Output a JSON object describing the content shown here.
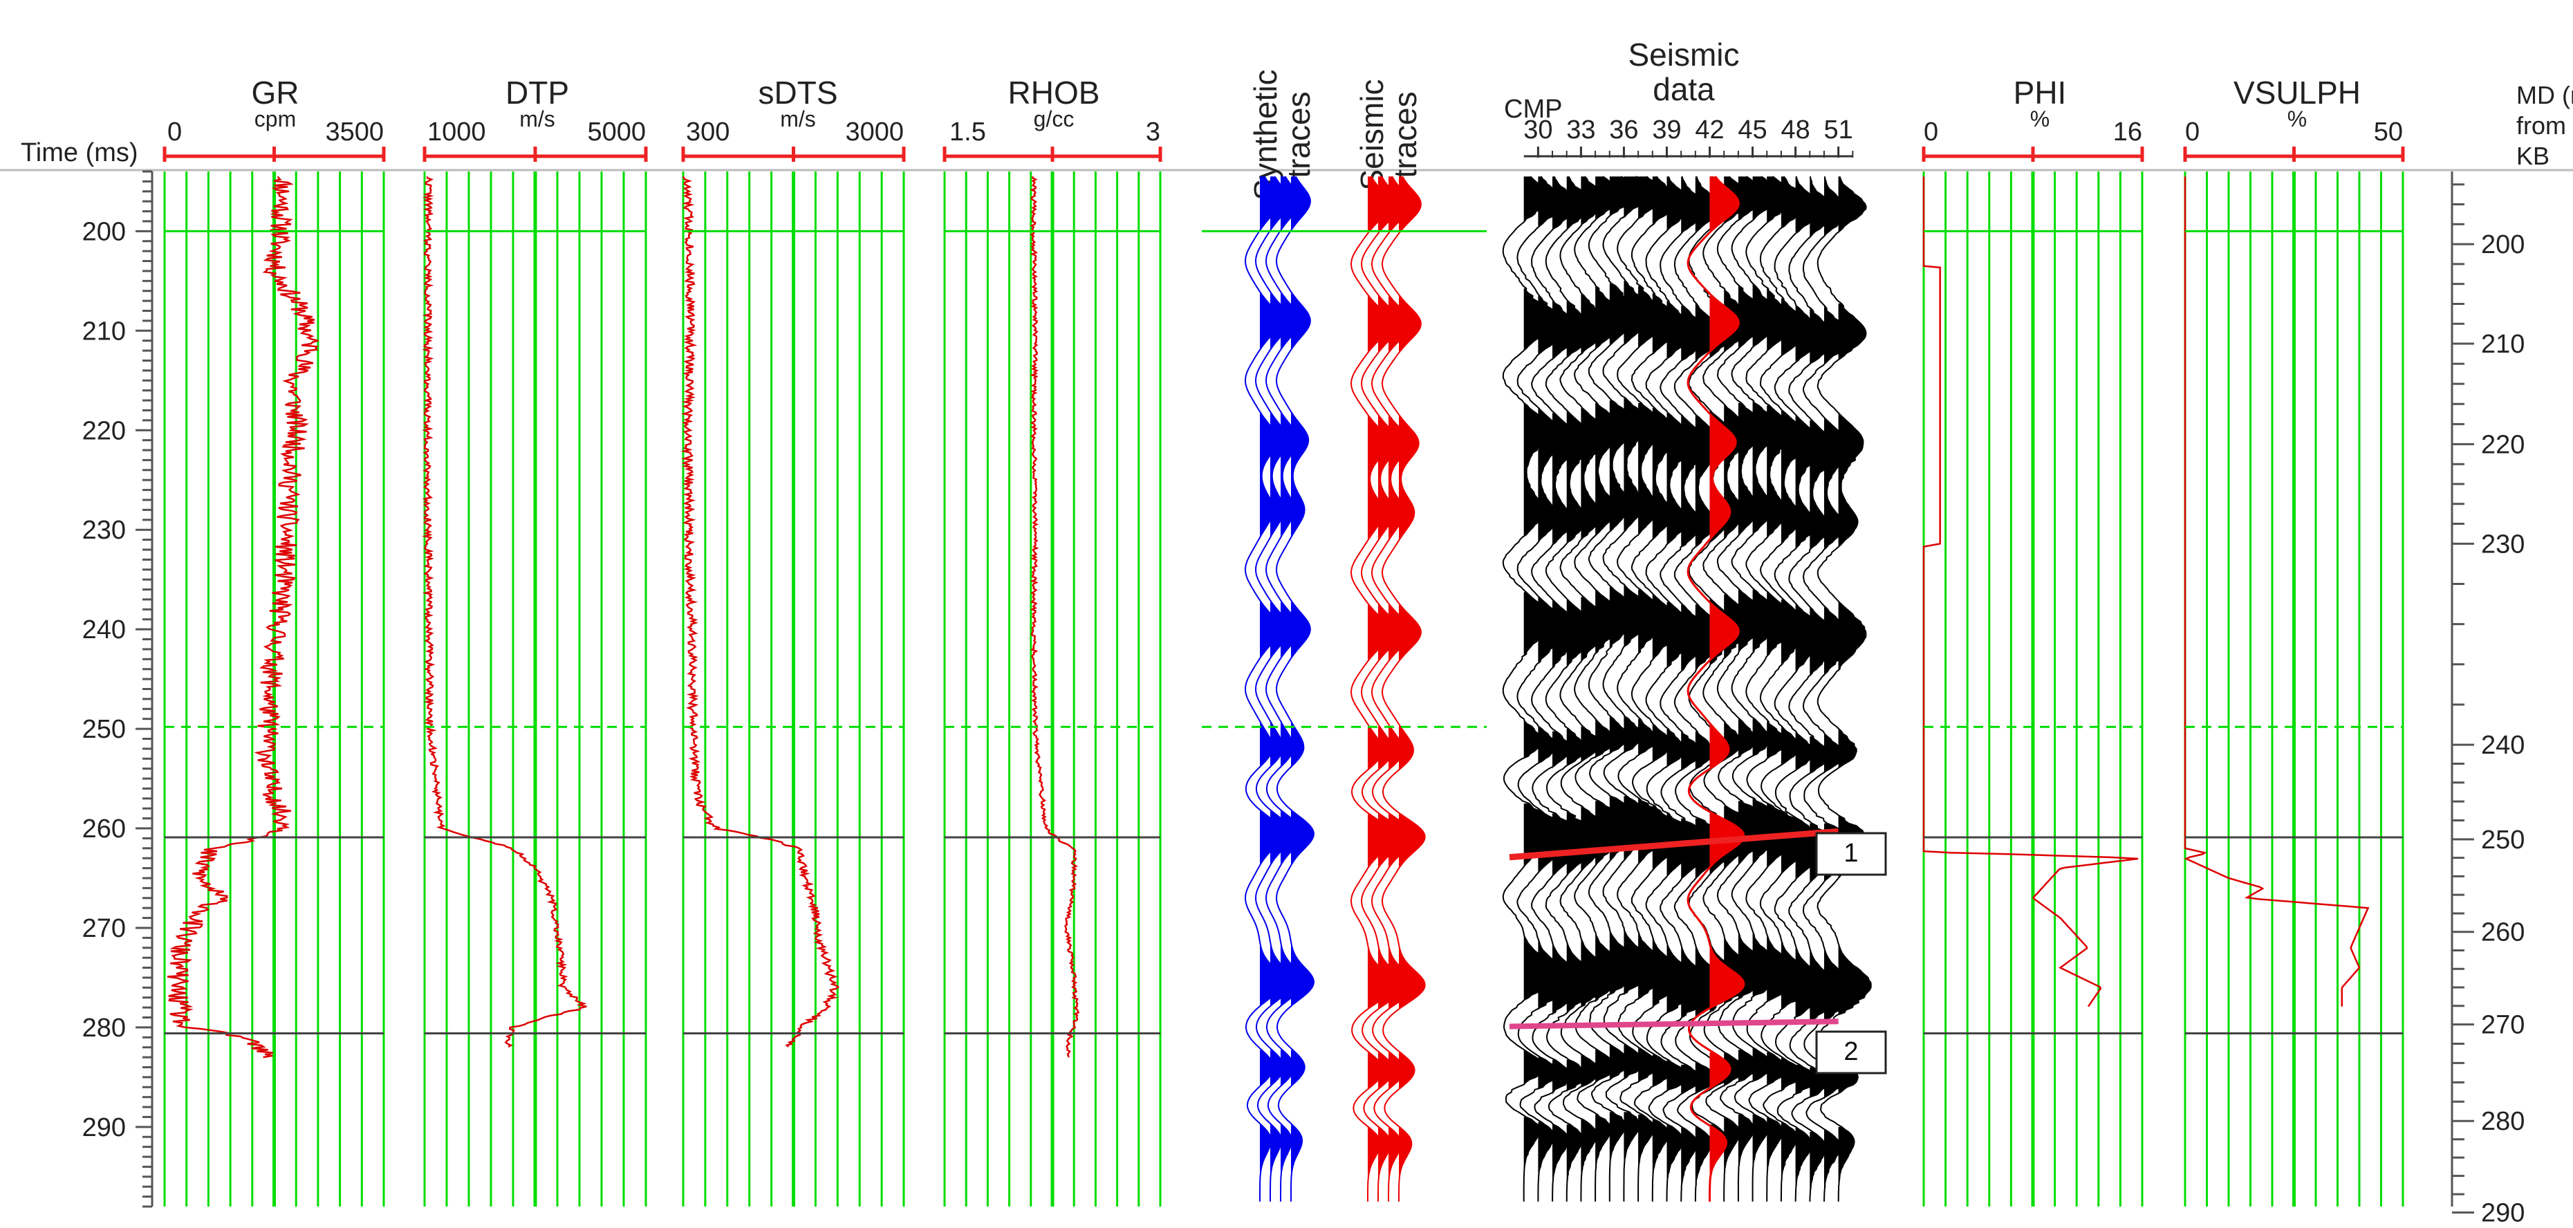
{
  "chart_data": {
    "type": "well-log-seismic-tie",
    "time_axis": {
      "label": "Time (ms)",
      "range": [
        194,
        298
      ],
      "ticks": [
        200,
        210,
        220,
        230,
        240,
        250,
        260,
        270,
        280,
        290
      ]
    },
    "depth_axis": {
      "label_lines": [
        "MD (m)",
        "from",
        "KB"
      ],
      "ticks": [
        200,
        210,
        220,
        230,
        240,
        250,
        260,
        270,
        280,
        290
      ],
      "time_at_md": [
        {
          "md": 200,
          "t": 201.3
        },
        {
          "md": 210,
          "t": 211.3
        },
        {
          "md": 220,
          "t": 221.4
        },
        {
          "md": 230,
          "t": 231.4
        },
        {
          "md": 240,
          "t": 251.6
        },
        {
          "md": 250,
          "t": 261.1
        },
        {
          "md": 260,
          "t": 270.4
        },
        {
          "md": 270,
          "t": 279.7
        },
        {
          "md": 280,
          "t": 289.4
        },
        {
          "md": 290,
          "t": 298.6
        }
      ]
    },
    "horizons": [
      {
        "t": 200,
        "style": "solid",
        "color": "#00dd00"
      },
      {
        "t": 249.8,
        "style": "dashed",
        "color": "#00dd00"
      },
      {
        "t": 260.9,
        "style": "solid",
        "color": "#444444"
      },
      {
        "t": 280.6,
        "style": "solid",
        "color": "#444444"
      }
    ],
    "logs": [
      {
        "name": "GR",
        "unit": "cpm",
        "min": 0,
        "max": 3500,
        "min_label": "0",
        "max_label": "3500",
        "profile": [
          [
            194.5,
            1900
          ],
          [
            200,
            1850
          ],
          [
            204,
            1750
          ],
          [
            208,
            2200
          ],
          [
            212,
            2350
          ],
          [
            215,
            2050
          ],
          [
            220,
            2100
          ],
          [
            225,
            2000
          ],
          [
            230,
            1950
          ],
          [
            235,
            1900
          ],
          [
            240,
            1800
          ],
          [
            245,
            1700
          ],
          [
            250,
            1650
          ],
          [
            255,
            1650
          ],
          [
            260,
            1950
          ],
          [
            261,
            1600
          ],
          [
            262,
            700
          ],
          [
            265,
            550
          ],
          [
            267,
            900
          ],
          [
            269,
            480
          ],
          [
            272,
            250
          ],
          [
            276,
            200
          ],
          [
            279,
            250
          ],
          [
            280,
            300
          ],
          [
            281,
            1300
          ],
          [
            283,
            1650
          ]
        ]
      },
      {
        "name": "DTP",
        "unit": "m/s",
        "min": 1000,
        "max": 5000,
        "min_label": "1000",
        "max_label": "5000",
        "profile": [
          [
            194.5,
            1080
          ],
          [
            200,
            1060
          ],
          [
            210,
            1060
          ],
          [
            220,
            1050
          ],
          [
            230,
            1060
          ],
          [
            240,
            1080
          ],
          [
            250,
            1100
          ],
          [
            255,
            1200
          ],
          [
            258,
            1250
          ],
          [
            260,
            1300
          ],
          [
            261,
            1900
          ],
          [
            262,
            2600
          ],
          [
            264,
            3000
          ],
          [
            267,
            3300
          ],
          [
            272,
            3450
          ],
          [
            276,
            3500
          ],
          [
            278,
            3900
          ],
          [
            279,
            3200
          ],
          [
            280,
            2600
          ],
          [
            282,
            2500
          ]
        ]
      },
      {
        "name": "sDTS",
        "unit": "m/s",
        "min": 300,
        "max": 3000,
        "min_label": "300",
        "max_label": "3000",
        "profile": [
          [
            194.5,
            330
          ],
          [
            200,
            380
          ],
          [
            210,
            390
          ],
          [
            220,
            360
          ],
          [
            230,
            370
          ],
          [
            240,
            400
          ],
          [
            250,
            420
          ],
          [
            255,
            450
          ],
          [
            258,
            520
          ],
          [
            260,
            700
          ],
          [
            261,
            1300
          ],
          [
            262,
            1700
          ],
          [
            265,
            1800
          ],
          [
            268,
            1900
          ],
          [
            272,
            2000
          ],
          [
            276,
            2150
          ],
          [
            278,
            2050
          ],
          [
            280,
            1750
          ],
          [
            282,
            1600
          ]
        ]
      },
      {
        "name": "RHOB",
        "unit": "g/cc",
        "min": 1.5,
        "max": 3,
        "min_label": "1.5",
        "max_label": "3",
        "profile": [
          [
            194.5,
            2.12
          ],
          [
            200,
            2.12
          ],
          [
            210,
            2.13
          ],
          [
            220,
            2.12
          ],
          [
            230,
            2.13
          ],
          [
            240,
            2.12
          ],
          [
            250,
            2.13
          ],
          [
            255,
            2.16
          ],
          [
            258,
            2.19
          ],
          [
            260,
            2.2
          ],
          [
            261,
            2.28
          ],
          [
            262,
            2.4
          ],
          [
            265,
            2.4
          ],
          [
            270,
            2.35
          ],
          [
            275,
            2.4
          ],
          [
            279,
            2.42
          ],
          [
            281,
            2.37
          ],
          [
            283,
            2.35
          ]
        ]
      },
      {
        "name": "PHI",
        "unit": "%",
        "min": 0,
        "max": 16,
        "min_label": "0",
        "max_label": "16",
        "profile": [
          [
            194.5,
            0
          ],
          [
            203.5,
            0
          ],
          [
            203.6,
            1.2
          ],
          [
            231.5,
            1.2
          ],
          [
            231.6,
            0
          ],
          [
            262.4,
            0
          ],
          [
            262.5,
            4
          ],
          [
            263,
            16
          ],
          [
            264,
            10
          ],
          [
            267,
            8
          ],
          [
            269,
            10
          ],
          [
            272,
            12
          ],
          [
            274,
            10
          ],
          [
            276,
            13
          ],
          [
            278,
            12
          ]
        ]
      },
      {
        "name": "VSULPH",
        "unit": "%",
        "min": 0,
        "max": 50,
        "min_label": "0",
        "max_label": "50",
        "profile": [
          [
            194.5,
            0
          ],
          [
            262,
            0
          ],
          [
            262.5,
            5
          ],
          [
            263,
            0
          ],
          [
            264,
            5
          ],
          [
            265,
            10
          ],
          [
            266,
            18
          ],
          [
            267,
            14
          ],
          [
            268,
            42
          ],
          [
            270,
            40
          ],
          [
            272,
            38
          ],
          [
            274,
            40
          ],
          [
            276,
            36
          ],
          [
            278,
            36
          ]
        ]
      }
    ],
    "synthetic_traces": {
      "title_lines": [
        "Synthetic",
        "traces"
      ],
      "color": "#0000ee",
      "count": 4
    },
    "seismic_traces": {
      "title_lines": [
        "Seismic",
        "traces"
      ],
      "color": "#ee0000",
      "count": 4
    },
    "seismic_data": {
      "title_lines": [
        "Seismic",
        "data"
      ],
      "xlabel": "CMP",
      "cmp_range": [
        28,
        53
      ],
      "cmp_ticks": [
        30,
        33,
        36,
        39,
        42,
        45,
        48,
        51
      ],
      "minor_cmp_ticks": [
        31,
        32,
        34,
        35,
        37,
        38,
        40,
        41,
        43,
        44,
        46,
        47,
        49,
        50,
        52
      ],
      "well_cmp": 42,
      "trace_count": 23,
      "peaks_ms": [
        197,
        209,
        221,
        228,
        240,
        252,
        260.5,
        275.5,
        284,
        291
      ],
      "troughs_ms": [
        203,
        215,
        234,
        246,
        256,
        267,
        280,
        288
      ],
      "amplitudes": [
        1.0,
        1.0,
        0.9,
        0.7,
        1.0,
        0.7,
        1.2,
        1.2,
        0.8,
        0.7
      ],
      "horizon_1": {
        "label": "1",
        "cmp_start": 28,
        "t_start": 262.9,
        "cmp_end": 51,
        "t_end": 260.3,
        "color": "#ee2222"
      },
      "horizon_2": {
        "label": "2",
        "cmp_start": 28,
        "t_start": 279.9,
        "cmp_end": 51,
        "t_end": 279.4,
        "color": "#e0468c"
      }
    }
  },
  "colors": {
    "grid": "#00dd00",
    "curve": "#dd0000",
    "scale": "#ee2222",
    "black_line": "#444444",
    "axis": "#555555"
  }
}
